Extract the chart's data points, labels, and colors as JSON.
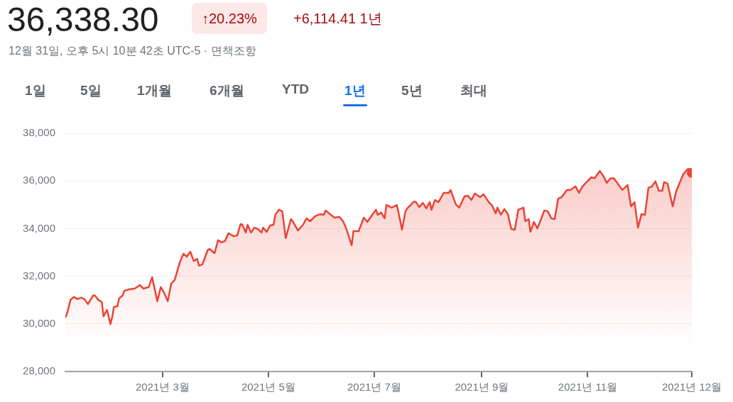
{
  "chart_data": {
    "type": "area",
    "title": "36,338.30",
    "subtitle": "12월 31일, 오후 5시 10분 42초 UTC-5 · 면책조항",
    "annotations": [
      "↑20.23%",
      "+6,114.41 1년",
      "1일",
      "5일",
      "1개월",
      "6개월",
      "YTD",
      "1년",
      "5년",
      "최대"
    ],
    "x": [
      "2021-01-04",
      "2021-01-05",
      "2021-01-07",
      "2021-01-09",
      "2021-01-11",
      "2021-01-13",
      "2021-01-15",
      "2021-01-17",
      "2021-01-18",
      "2021-01-20",
      "2021-01-21",
      "2021-01-23",
      "2021-01-25",
      "2021-01-26",
      "2021-01-28",
      "2021-01-30",
      "2021-01-31",
      "2021-02-01",
      "2021-02-03",
      "2021-02-04",
      "2021-02-06",
      "2021-02-07",
      "2021-02-10",
      "2021-02-13",
      "2021-02-16",
      "2021-02-18",
      "2021-02-21",
      "2021-02-23",
      "2021-02-26",
      "2021-02-28",
      "2021-03-02",
      "2021-03-04",
      "2021-03-06",
      "2021-03-08",
      "2021-03-10",
      "2021-03-11",
      "2021-03-13",
      "2021-03-15",
      "2021-03-17",
      "2021-03-19",
      "2021-03-21",
      "2021-03-22",
      "2021-03-24",
      "2021-03-27",
      "2021-03-28",
      "2021-03-31",
      "2021-04-02",
      "2021-04-04",
      "2021-04-06",
      "2021-04-08",
      "2021-04-11",
      "2021-04-13",
      "2021-04-15",
      "2021-04-16",
      "2021-04-18",
      "2021-04-19",
      "2021-04-21",
      "2021-04-23",
      "2021-04-25",
      "2021-04-27",
      "2021-04-28",
      "2021-04-30",
      "2021-05-02",
      "2021-05-04",
      "2021-05-05",
      "2021-05-07",
      "2021-05-09",
      "2021-05-11",
      "2021-05-14",
      "2021-05-15",
      "2021-05-18",
      "2021-05-21",
      "2021-05-23",
      "2021-05-25",
      "2021-05-28",
      "2021-05-31",
      "2021-06-02",
      "2021-06-03",
      "2021-06-05",
      "2021-06-08",
      "2021-06-11",
      "2021-06-13",
      "2021-06-15",
      "2021-06-18",
      "2021-06-19",
      "2021-06-22",
      "2021-06-25",
      "2021-06-27",
      "2021-06-29",
      "2021-07-02",
      "2021-07-03",
      "2021-07-05",
      "2021-07-07",
      "2021-07-08",
      "2021-07-11",
      "2021-07-14",
      "2021-07-15",
      "2021-07-17",
      "2021-07-19",
      "2021-07-20",
      "2021-07-24",
      "2021-07-25",
      "2021-07-27",
      "2021-07-29",
      "2021-07-31",
      "2021-08-02",
      "2021-08-03",
      "2021-08-05",
      "2021-08-07",
      "2021-08-10",
      "2021-08-13",
      "2021-08-14",
      "2021-08-17",
      "2021-08-19",
      "2021-08-22",
      "2021-08-24",
      "2021-08-26",
      "2021-08-28",
      "2021-08-31",
      "2021-09-02",
      "2021-09-05",
      "2021-09-07",
      "2021-09-09",
      "2021-09-10",
      "2021-09-12",
      "2021-09-14",
      "2021-09-16",
      "2021-09-18",
      "2021-09-20",
      "2021-09-22",
      "2021-09-25",
      "2021-09-26",
      "2021-09-28",
      "2021-09-29",
      "2021-10-01",
      "2021-10-03",
      "2021-10-05",
      "2021-10-07",
      "2021-10-09",
      "2021-10-11",
      "2021-10-13",
      "2021-10-15",
      "2021-10-17",
      "2021-10-20",
      "2021-10-22",
      "2021-10-25",
      "2021-10-27",
      "2021-10-29",
      "2021-10-31",
      "2021-11-03",
      "2021-11-05",
      "2021-11-08",
      "2021-11-10",
      "2021-11-12",
      "2021-11-14",
      "2021-11-16",
      "2021-11-18",
      "2021-11-21",
      "2021-11-24",
      "2021-11-26",
      "2021-11-28",
      "2021-11-30",
      "2021-12-02",
      "2021-12-04",
      "2021-12-06",
      "2021-12-08",
      "2021-12-10",
      "2021-12-12",
      "2021-12-14",
      "2021-12-15",
      "2021-12-17",
      "2021-12-20",
      "2021-12-22",
      "2021-12-24",
      "2021-12-26",
      "2021-12-28",
      "2021-12-29",
      "2021-12-31"
    ],
    "series": [
      {
        "color": "#ea4335",
        "values": [
          30260,
          30440,
          31010,
          31130,
          31040,
          31100,
          31040,
          30830,
          30950,
          31190,
          31190,
          31010,
          30920,
          30320,
          30590,
          29990,
          30290,
          30710,
          30740,
          31070,
          31190,
          31390,
          31450,
          31480,
          31630,
          31480,
          31540,
          31960,
          30950,
          31540,
          31300,
          30950,
          31690,
          31840,
          32350,
          32580,
          32940,
          32820,
          33030,
          32640,
          32730,
          32440,
          32500,
          33090,
          33150,
          32970,
          33510,
          33420,
          33480,
          33800,
          33680,
          33710,
          34190,
          34160,
          33830,
          34160,
          33830,
          34040,
          33980,
          33830,
          34040,
          33860,
          34130,
          34160,
          34580,
          34790,
          34730,
          33600,
          34400,
          34310,
          33920,
          34160,
          34430,
          34310,
          34520,
          34610,
          34580,
          34760,
          34640,
          34460,
          34490,
          34310,
          33980,
          33300,
          33890,
          33890,
          34460,
          34280,
          34490,
          34790,
          34580,
          34670,
          34430,
          34990,
          34880,
          34990,
          34670,
          33950,
          34730,
          34850,
          35140,
          35110,
          34900,
          35080,
          34850,
          35110,
          34790,
          35200,
          35110,
          35500,
          35500,
          35620,
          35020,
          34880,
          35350,
          35380,
          35200,
          35470,
          35320,
          35440,
          35110,
          34960,
          34640,
          34880,
          34580,
          34820,
          34610,
          33980,
          33950,
          34790,
          34880,
          34310,
          34400,
          33860,
          34280,
          34010,
          34370,
          34760,
          34730,
          34430,
          34400,
          35260,
          35320,
          35620,
          35620,
          35770,
          35500,
          35770,
          35920,
          36150,
          36120,
          36420,
          36210,
          35920,
          36100,
          36120,
          35920,
          35620,
          35830,
          34930,
          35110,
          34040,
          34610,
          34580,
          35710,
          35770,
          35980,
          35590,
          35590,
          35950,
          35890,
          34930,
          35560,
          35920,
          36270,
          36450,
          36510,
          36338.3
        ]
      }
    ],
    "xlim": [
      "2021-01-04",
      "2021-12-31"
    ],
    "xticks": [
      {
        "value": "2021-03-01",
        "label": "2021년 3월"
      },
      {
        "value": "2021-05-01",
        "label": "2021년 5월"
      },
      {
        "value": "2021-07-01",
        "label": "2021년 7월"
      },
      {
        "value": "2021-09-01",
        "label": "2021년 9월"
      },
      {
        "value": "2021-11-01",
        "label": "2021년 11월"
      },
      {
        "value": "2021-12-31",
        "label": "2021년 12월"
      }
    ],
    "ylim": [
      28000,
      38000
    ],
    "yticks": [
      {
        "value": 28000,
        "label": "28,000"
      },
      {
        "value": 30000,
        "label": "30,000"
      },
      {
        "value": 32000,
        "label": "32,000"
      },
      {
        "value": 34000,
        "label": "34,000"
      },
      {
        "value": 36000,
        "label": "36,000"
      },
      {
        "value": 38000,
        "label": "38,000"
      }
    ],
    "grid": "y"
  }
}
